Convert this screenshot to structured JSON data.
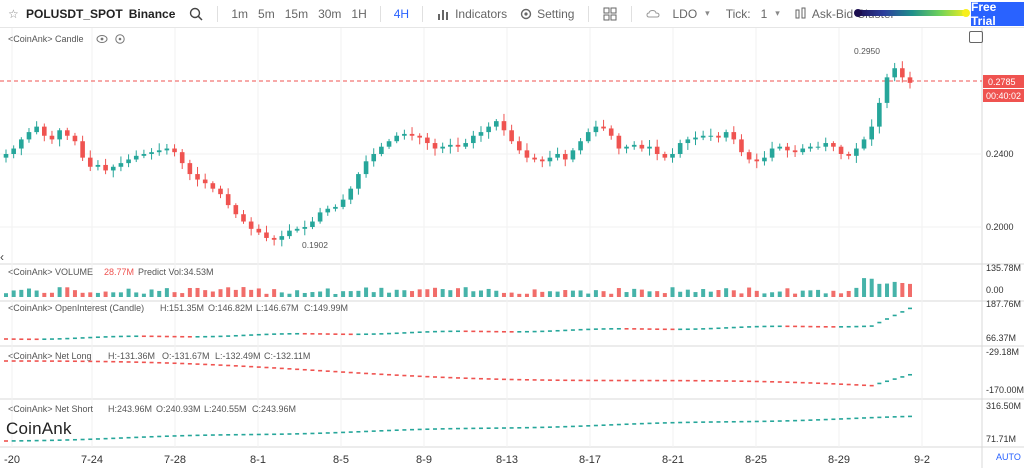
{
  "toolbar": {
    "symbol": "POLUSDT_SPOT",
    "exchange": "Binance",
    "timeframes": [
      "1m",
      "5m",
      "15m",
      "30m",
      "1H",
      "4H"
    ],
    "active_timeframe": "4H",
    "indicators_label": "Indicators",
    "setting_label": "Setting",
    "ldo_label": "LDO",
    "tick_label": "Tick:",
    "tick_value": "1",
    "cluster_label": "Ask-Bid Cluster",
    "free_trial_label": "Free Trial"
  },
  "colors": {
    "up": "#26a69a",
    "down": "#ef5350",
    "accent": "#2962ff",
    "price_line": "#ef5350"
  },
  "panes": {
    "candle": {
      "title": "<CoinAnk> Candle",
      "max_label": "0.2950",
      "min_label": "0.1902",
      "price_label": "0.2785",
      "countdown_label": "00:40:02",
      "y_ticks": [
        "0.2400",
        "0.2000"
      ]
    },
    "volume": {
      "title": "<CoinAnk> VOLUME",
      "value": "28.77M",
      "predict": "Predict Vol:34.53M",
      "y_ticks": [
        "135.78M",
        "0.00"
      ]
    },
    "open_interest": {
      "title": "<CoinAnk> OpenInterest (Candle)",
      "h": "H:151.35M",
      "o": "O:146.82M",
      "l": "L:146.67M",
      "c": "C:149.99M",
      "y_ticks": [
        "187.76M",
        "66.37M"
      ]
    },
    "net_long": {
      "title": "<CoinAnk> Net Long",
      "h": "H:-131.36M",
      "o": "O:-131.67M",
      "l": "L:-132.49M",
      "c": "C:-132.11M",
      "y_ticks": [
        "-29.18M",
        "-170.00M"
      ]
    },
    "net_short": {
      "title": "<CoinAnk> Net Short",
      "h": "H:243.96M",
      "o": "O:240.93M",
      "l": "L:240.55M",
      "c": "C:243.96M",
      "y_ticks": [
        "316.50M",
        "71.71M"
      ]
    }
  },
  "x_ticks": [
    "-20",
    "7-24",
    "7-28",
    "8-1",
    "8-5",
    "8-9",
    "8-13",
    "8-17",
    "8-21",
    "8-25",
    "8-29",
    "9-2"
  ],
  "watermark": "CoinAnk",
  "auto_label": "AUTO",
  "chart_data": {
    "type": "candlestick",
    "price_axis": {
      "ticks": [
        0.24,
        0.2
      ],
      "max_marked": 0.295,
      "min_marked": 0.1902,
      "last": 0.2785
    },
    "close_path": [
      0.24,
      0.243,
      0.248,
      0.252,
      0.255,
      0.25,
      0.248,
      0.253,
      0.25,
      0.247,
      0.238,
      0.233,
      0.234,
      0.231,
      0.233,
      0.235,
      0.237,
      0.239,
      0.24,
      0.241,
      0.242,
      0.243,
      0.241,
      0.235,
      0.229,
      0.226,
      0.224,
      0.221,
      0.218,
      0.212,
      0.207,
      0.203,
      0.199,
      0.197,
      0.194,
      0.193,
      0.195,
      0.198,
      0.199,
      0.2,
      0.203,
      0.208,
      0.21,
      0.211,
      0.215,
      0.221,
      0.229,
      0.236,
      0.24,
      0.244,
      0.247,
      0.25,
      0.251,
      0.25,
      0.249,
      0.246,
      0.243,
      0.244,
      0.245,
      0.244,
      0.246,
      0.25,
      0.252,
      0.255,
      0.258,
      0.253,
      0.247,
      0.242,
      0.238,
      0.237,
      0.236,
      0.238,
      0.24,
      0.237,
      0.242,
      0.247,
      0.252,
      0.255,
      0.254,
      0.25,
      0.243,
      0.244,
      0.245,
      0.243,
      0.244,
      0.24,
      0.238,
      0.24,
      0.246,
      0.248,
      0.249,
      0.25,
      0.25,
      0.249,
      0.252,
      0.248,
      0.241,
      0.237,
      0.236,
      0.238,
      0.243,
      0.244,
      0.242,
      0.241,
      0.243,
      0.244,
      0.244,
      0.246,
      0.244,
      0.24,
      0.239,
      0.243,
      0.248,
      0.255,
      0.268,
      0.282,
      0.287,
      0.282,
      0.279
    ]
  }
}
